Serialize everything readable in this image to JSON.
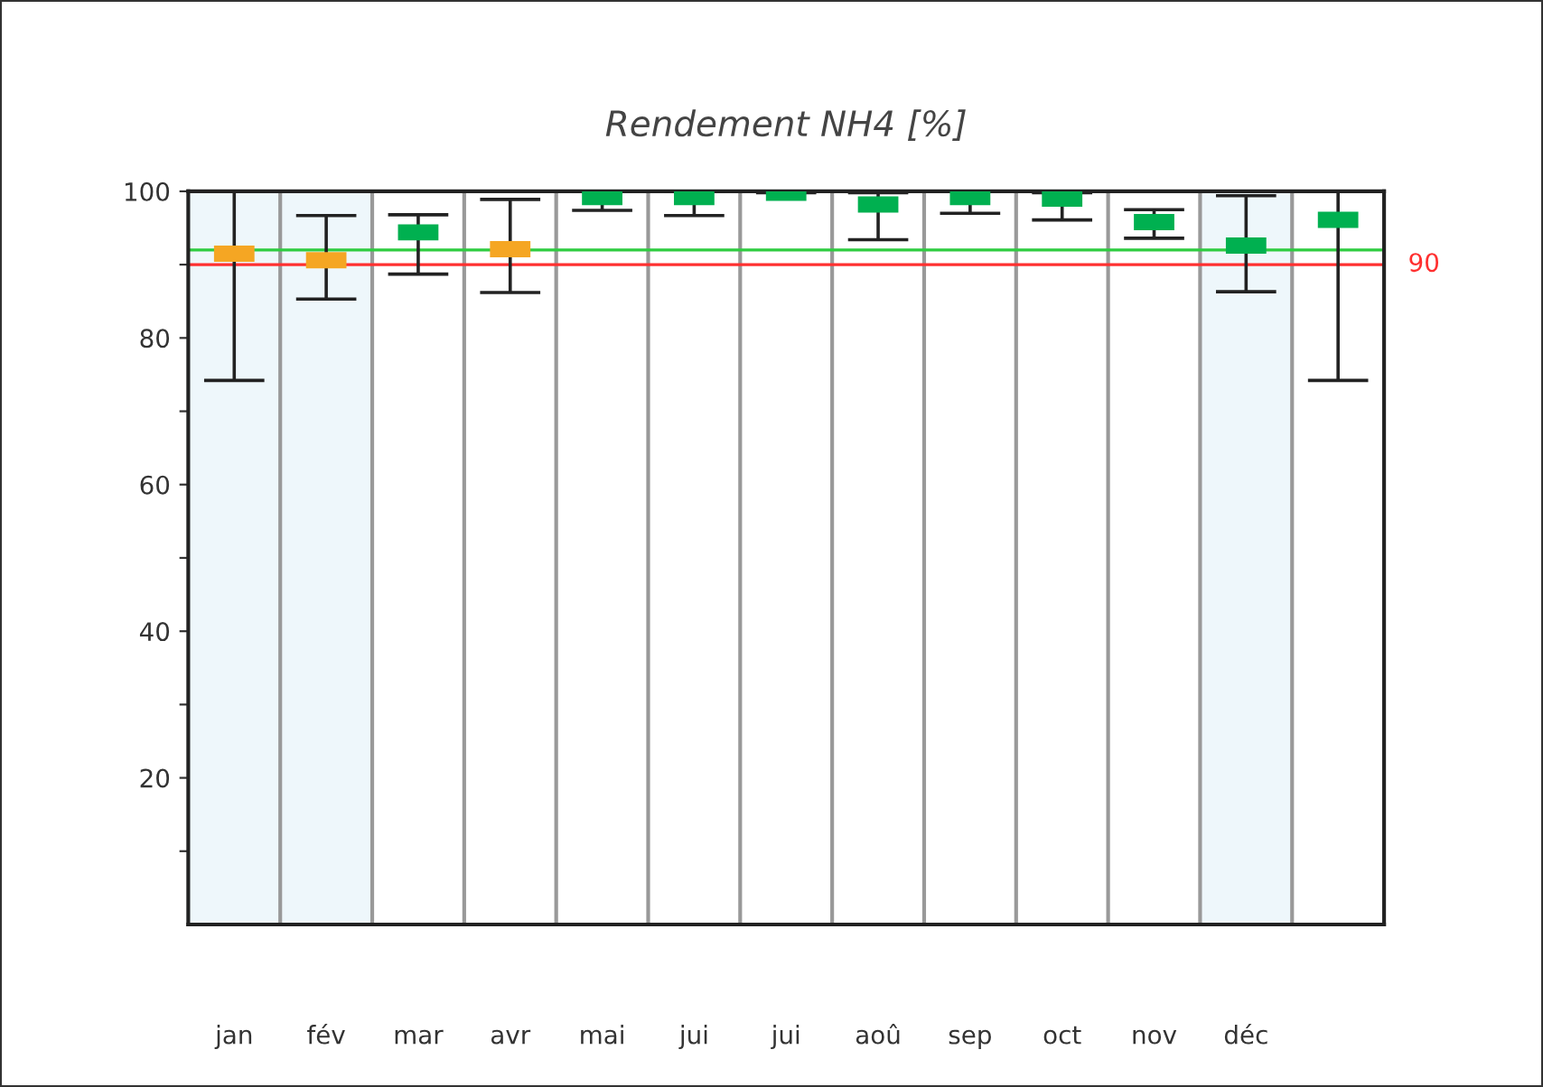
{
  "chart_data": {
    "type": "scatter",
    "title": "Rendement NH4 [%]",
    "categories": [
      "jan",
      "fév",
      "mar",
      "avr",
      "mai",
      "jui",
      "jui",
      "aoû",
      "sep",
      "oct",
      "nov",
      "déc",
      null
    ],
    "values": [
      91.5,
      90.6,
      94.4,
      92.1,
      99.2,
      99.2,
      99.8,
      98.2,
      99.2,
      99.0,
      95.8,
      92.6,
      96.1
    ],
    "colors": [
      "#f5a623",
      "#f5a623",
      "#00b050",
      "#f5a623",
      "#00b050",
      "#00b050",
      "#00b050",
      "#00b050",
      "#00b050",
      "#00b050",
      "#00b050",
      "#00b050",
      "#00b050"
    ],
    "errors": [
      [
        74.2,
        100
      ],
      [
        85.3,
        96.7
      ],
      [
        88.7,
        96.8
      ],
      [
        86.2,
        98.9
      ],
      [
        97.4,
        100
      ],
      [
        96.7,
        100
      ],
      [
        99.8,
        100
      ],
      [
        93.4,
        99.8
      ],
      [
        97.0,
        100
      ],
      [
        96.1,
        99.8
      ],
      [
        93.6,
        97.5
      ],
      [
        86.3,
        99.4
      ],
      [
        74.2,
        100
      ]
    ],
    "ylim": [
      0,
      100
    ],
    "yticks": [
      {
        "value": 10,
        "label": null
      },
      20,
      {
        "value": 30,
        "label": null
      },
      40,
      {
        "value": 50,
        "label": null
      },
      60,
      {
        "value": 70,
        "label": null
      },
      80,
      {
        "value": 90,
        "label": null
      },
      100
    ],
    "ref_lines": [
      {
        "axis": "y",
        "value": 92,
        "label": null,
        "color": "#2ecc40"
      },
      {
        "axis": "y",
        "value": 90,
        "label": "90",
        "color": "#ff3030"
      }
    ],
    "bands": [
      {
        "axis": "x",
        "from": "jan",
        "to": "fév",
        "label": null,
        "color": "#eef7fb"
      },
      {
        "axis": "x",
        "from": "déc",
        "to": "déc",
        "label": null,
        "color": "#eef7fb"
      }
    ],
    "grid": "x"
  }
}
